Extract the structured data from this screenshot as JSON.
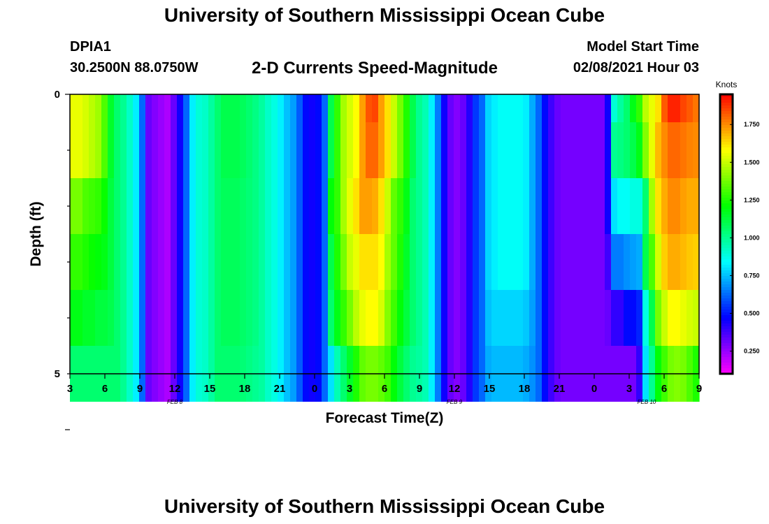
{
  "header": {
    "title": "University of Southern Mississippi Ocean Cube",
    "station": "DPIA1",
    "coords": "30.2500N 88.0750W",
    "chart_title": "2-D Currents Speed-Magnitude",
    "model_label": "Model Start Time",
    "model_time": "02/08/2021 Hour 03"
  },
  "footer": {
    "title": "University of Southern Mississippi Ocean Cube"
  },
  "chart_data": {
    "type": "heatmap",
    "title": "2-D Currents Speed-Magnitude",
    "xlabel": "Forecast Time(Z)",
    "ylabel": "Depth (ft)",
    "y_ticks": [
      "0",
      "5"
    ],
    "ylim": [
      0,
      5
    ],
    "x_tick_labels": [
      "3",
      "6",
      "9",
      "12",
      "15",
      "18",
      "21",
      "0",
      "3",
      "6",
      "9",
      "12",
      "15",
      "18",
      "21",
      "0",
      "3",
      "6",
      "9"
    ],
    "x_hours": [
      3,
      6,
      9,
      12,
      15,
      18,
      21,
      24,
      27,
      30,
      33,
      36,
      39,
      42,
      45,
      48,
      51,
      54,
      57
    ],
    "xlim_hours": [
      3,
      57
    ],
    "date_labels": [
      {
        "text": "FEB 8",
        "hour": 12
      },
      {
        "text": "FEB 9",
        "hour": 36
      },
      {
        "text": "FEB 10",
        "hour": 52.5
      }
    ],
    "depth_levels": 5,
    "colorbar": {
      "label": "Knots",
      "vmin": 0.1,
      "vmax": 1.95,
      "ticks": [
        "1.750",
        "1.500",
        "1.250",
        "1.000",
        "0.750",
        "0.500",
        "0.250"
      ],
      "tick_values": [
        1.75,
        1.5,
        1.25,
        1.0,
        0.75,
        0.5,
        0.25
      ]
    },
    "speed_knots_by_depth": [
      [
        1.55,
        1.55,
        1.52,
        1.48,
        1.44,
        1.32,
        1.15,
        1.05,
        1.0,
        0.92,
        0.82,
        0.62,
        0.32,
        0.28,
        0.25,
        0.22,
        0.32,
        0.45,
        0.62,
        0.82,
        0.9,
        0.92,
        0.98,
        1.05,
        1.1,
        1.1,
        1.1,
        1.08,
        1.05,
        1.02,
        0.98,
        0.92,
        0.88,
        0.82,
        0.75,
        0.7,
        0.6,
        0.48,
        0.45,
        0.48,
        0.62,
        1.1,
        1.28,
        1.45,
        1.52,
        1.58,
        1.72,
        1.83,
        1.85,
        1.72,
        1.62,
        1.5,
        1.38,
        1.25,
        1.1,
        1.0,
        0.95,
        0.82,
        0.65,
        0.45,
        0.32,
        0.28,
        0.32,
        0.42,
        0.55,
        0.62,
        0.78,
        0.82,
        0.85,
        0.85,
        0.85,
        0.85,
        0.82,
        0.72,
        0.62,
        0.48,
        0.38,
        0.32,
        0.3,
        0.3,
        0.3,
        0.3,
        0.3,
        0.3,
        0.3,
        0.45,
        0.9,
        0.98,
        1.05,
        1.18,
        1.28,
        1.48,
        1.55,
        1.62,
        1.82,
        1.9,
        1.9,
        1.85,
        1.82,
        1.78
      ],
      [
        1.55,
        1.55,
        1.52,
        1.48,
        1.44,
        1.32,
        1.15,
        1.05,
        1.0,
        0.92,
        0.82,
        0.62,
        0.32,
        0.28,
        0.25,
        0.22,
        0.32,
        0.45,
        0.62,
        0.82,
        0.9,
        0.92,
        0.98,
        1.05,
        1.1,
        1.1,
        1.1,
        1.08,
        1.05,
        1.02,
        0.98,
        0.92,
        0.88,
        0.82,
        0.75,
        0.7,
        0.6,
        0.48,
        0.45,
        0.48,
        0.62,
        1.1,
        1.28,
        1.45,
        1.52,
        1.58,
        1.72,
        1.8,
        1.8,
        1.72,
        1.62,
        1.5,
        1.38,
        1.25,
        1.1,
        1.0,
        0.95,
        0.82,
        0.65,
        0.45,
        0.32,
        0.28,
        0.32,
        0.42,
        0.55,
        0.62,
        0.78,
        0.82,
        0.85,
        0.85,
        0.85,
        0.85,
        0.82,
        0.72,
        0.62,
        0.48,
        0.38,
        0.32,
        0.3,
        0.3,
        0.3,
        0.3,
        0.3,
        0.3,
        0.3,
        0.45,
        1.0,
        1.02,
        1.05,
        1.1,
        1.18,
        1.4,
        1.55,
        1.68,
        1.75,
        1.8,
        1.8,
        1.78,
        1.76,
        1.75
      ],
      [
        1.38,
        1.38,
        1.32,
        1.3,
        1.28,
        1.22,
        1.12,
        1.05,
        1.0,
        0.92,
        0.82,
        0.62,
        0.32,
        0.28,
        0.25,
        0.22,
        0.32,
        0.45,
        0.62,
        0.82,
        0.9,
        0.92,
        0.98,
        1.05,
        1.08,
        1.08,
        1.08,
        1.06,
        1.04,
        1.02,
        0.98,
        0.92,
        0.88,
        0.82,
        0.75,
        0.7,
        0.6,
        0.48,
        0.45,
        0.48,
        0.62,
        1.2,
        1.28,
        1.45,
        1.55,
        1.62,
        1.72,
        1.72,
        1.7,
        1.62,
        1.5,
        1.35,
        1.28,
        1.18,
        1.05,
        1.0,
        0.95,
        0.82,
        0.65,
        0.45,
        0.32,
        0.28,
        0.32,
        0.42,
        0.55,
        0.62,
        0.78,
        0.82,
        0.85,
        0.85,
        0.85,
        0.85,
        0.82,
        0.72,
        0.62,
        0.48,
        0.38,
        0.32,
        0.3,
        0.3,
        0.3,
        0.3,
        0.3,
        0.3,
        0.3,
        0.45,
        0.8,
        0.85,
        0.85,
        0.88,
        0.88,
        1.05,
        1.45,
        1.62,
        1.7,
        1.75,
        1.75,
        1.72,
        1.7,
        1.7
      ],
      [
        1.28,
        1.28,
        1.25,
        1.22,
        1.2,
        1.18,
        1.12,
        1.05,
        1.0,
        0.92,
        0.82,
        0.62,
        0.32,
        0.28,
        0.25,
        0.22,
        0.32,
        0.45,
        0.62,
        0.82,
        0.9,
        0.92,
        0.98,
        1.05,
        1.08,
        1.08,
        1.08,
        1.06,
        1.04,
        1.02,
        0.98,
        0.92,
        0.88,
        0.82,
        0.75,
        0.7,
        0.6,
        0.48,
        0.45,
        0.48,
        0.62,
        1.1,
        1.25,
        1.38,
        1.5,
        1.55,
        1.62,
        1.62,
        1.62,
        1.58,
        1.45,
        1.35,
        1.25,
        1.15,
        1.05,
        1.0,
        0.95,
        0.82,
        0.65,
        0.45,
        0.32,
        0.28,
        0.32,
        0.42,
        0.55,
        0.62,
        0.78,
        0.82,
        0.85,
        0.85,
        0.85,
        0.85,
        0.82,
        0.72,
        0.62,
        0.48,
        0.38,
        0.32,
        0.3,
        0.3,
        0.3,
        0.3,
        0.3,
        0.3,
        0.3,
        0.38,
        0.65,
        0.65,
        0.68,
        0.7,
        0.72,
        1.1,
        1.32,
        1.52,
        1.65,
        1.7,
        1.7,
        1.68,
        1.66,
        1.65
      ],
      [
        1.18,
        1.18,
        1.15,
        1.15,
        1.12,
        1.12,
        1.1,
        1.05,
        1.0,
        0.92,
        0.82,
        0.62,
        0.32,
        0.28,
        0.25,
        0.22,
        0.32,
        0.45,
        0.62,
        0.82,
        0.9,
        0.92,
        0.98,
        1.05,
        1.08,
        1.08,
        1.08,
        1.06,
        1.04,
        1.02,
        0.98,
        0.92,
        0.88,
        0.82,
        0.75,
        0.7,
        0.6,
        0.48,
        0.45,
        0.48,
        0.62,
        1.05,
        1.18,
        1.28,
        1.38,
        1.48,
        1.55,
        1.58,
        1.58,
        1.52,
        1.4,
        1.3,
        1.2,
        1.12,
        1.05,
        1.0,
        0.95,
        0.82,
        0.65,
        0.45,
        0.32,
        0.28,
        0.32,
        0.42,
        0.55,
        0.62,
        0.75,
        0.78,
        0.78,
        0.78,
        0.78,
        0.78,
        0.76,
        0.7,
        0.62,
        0.48,
        0.38,
        0.32,
        0.3,
        0.3,
        0.3,
        0.3,
        0.3,
        0.3,
        0.3,
        0.32,
        0.4,
        0.4,
        0.48,
        0.48,
        0.52,
        0.88,
        1.1,
        1.38,
        1.5,
        1.58,
        1.58,
        1.55,
        1.52,
        1.5
      ],
      [
        1.05,
        1.05,
        1.05,
        1.05,
        1.05,
        1.05,
        1.05,
        1.05,
        1.0,
        0.92,
        0.82,
        0.62,
        0.32,
        0.28,
        0.25,
        0.22,
        0.32,
        0.45,
        0.62,
        0.82,
        0.9,
        0.92,
        0.98,
        1.05,
        1.05,
        1.05,
        1.05,
        1.04,
        1.02,
        1.0,
        0.98,
        0.92,
        0.88,
        0.82,
        0.75,
        0.7,
        0.6,
        0.48,
        0.45,
        0.48,
        0.62,
        0.8,
        0.95,
        1.05,
        1.15,
        1.25,
        1.35,
        1.38,
        1.38,
        1.35,
        1.3,
        1.2,
        1.12,
        1.05,
        1.0,
        0.98,
        0.95,
        0.82,
        0.65,
        0.45,
        0.32,
        0.28,
        0.32,
        0.42,
        0.55,
        0.62,
        0.72,
        0.74,
        0.74,
        0.74,
        0.74,
        0.74,
        0.72,
        0.68,
        0.62,
        0.48,
        0.38,
        0.32,
        0.3,
        0.3,
        0.3,
        0.3,
        0.3,
        0.3,
        0.3,
        0.3,
        0.3,
        0.3,
        0.3,
        0.3,
        0.4,
        0.8,
        1.0,
        1.2,
        1.3,
        1.38,
        1.4,
        1.38,
        1.32,
        1.25
      ]
    ]
  }
}
